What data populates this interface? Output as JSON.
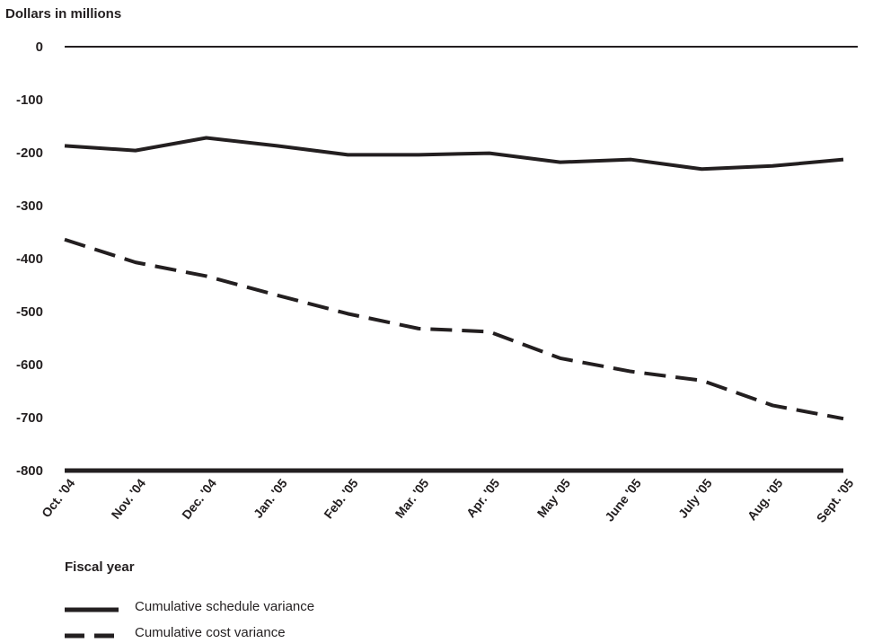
{
  "chart_data": {
    "type": "line",
    "ylabel": "Dollars in millions",
    "xlabel": "Fiscal year",
    "categories": [
      "Oct. '04",
      "Nov. '04",
      "Dec. '04",
      "Jan. '05",
      "Feb. '05",
      "Mar. '05",
      "Apr. '05",
      "May '05",
      "June '05",
      "July '05",
      "Aug. '05",
      "Sept. '05"
    ],
    "ylim": [
      -800,
      0
    ],
    "yticks": [
      "0",
      "-100",
      "-200",
      "-300",
      "-400",
      "-500",
      "-600",
      "-700",
      "-800"
    ],
    "ytick_values": [
      0,
      -100,
      -200,
      -300,
      -400,
      -500,
      -600,
      -700,
      -800
    ],
    "grid": false,
    "legend_position": "bottom-left",
    "series": [
      {
        "name": "Cumulative schedule variance",
        "style": "solid",
        "color": "#231f20",
        "values": [
          -187,
          -196,
          -172,
          -187,
          -204,
          -204,
          -201,
          -218,
          -213,
          -231,
          -225,
          -213
        ]
      },
      {
        "name": "Cumulative cost variance",
        "style": "dashed",
        "color": "#231f20",
        "values": [
          -364,
          -407,
          -433,
          -469,
          -504,
          -532,
          -538,
          -588,
          -613,
          -630,
          -677,
          -702
        ]
      }
    ]
  }
}
